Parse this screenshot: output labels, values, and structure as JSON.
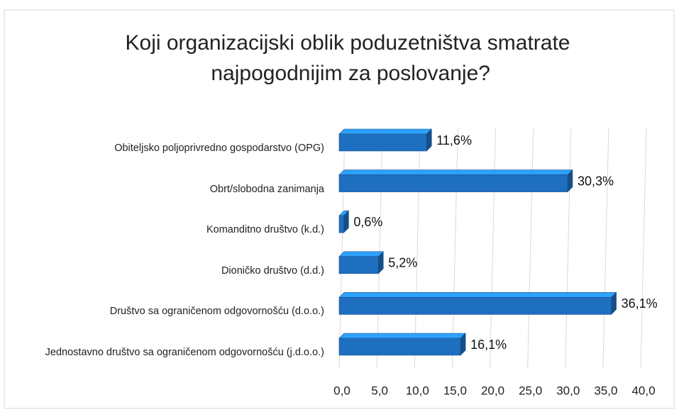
{
  "chart_data": {
    "type": "bar",
    "orientation": "horizontal",
    "title": "Koji organizacijski oblik poduzetništva smatrate najpogodnijim za poslovanje?",
    "categories": [
      "Obiteljsko poljoprivredno gospodarstvo (OPG)",
      "Obrt/slobodna zanimanja",
      "Komanditno društvo (k.d.)",
      "Dioničko društvo (d.d.)",
      "Društvo sa ograničenom odgovornošću (d.o.o.)",
      "Jednostavno društvo sa ograničenom odgovornošću (j.d.o.o.)"
    ],
    "values": [
      11.6,
      30.3,
      0.6,
      5.2,
      36.1,
      16.1
    ],
    "value_labels": [
      "11,6%",
      "30,3%",
      "0,6%",
      "5,2%",
      "36,1%",
      "16,1%"
    ],
    "color": "#1f6fc0",
    "xlim": [
      0,
      40
    ],
    "xticks": [
      {
        "value": 0,
        "label": "0,0"
      },
      {
        "value": 5,
        "label": "5,0"
      },
      {
        "value": 10,
        "label": "10,0"
      },
      {
        "value": 15,
        "label": "15,0"
      },
      {
        "value": 20,
        "label": "20,0"
      },
      {
        "value": 25,
        "label": "25,0"
      },
      {
        "value": 30,
        "label": "30,0"
      },
      {
        "value": 35,
        "label": "35,0"
      },
      {
        "value": 40,
        "label": "40,0"
      }
    ],
    "grid": true
  }
}
